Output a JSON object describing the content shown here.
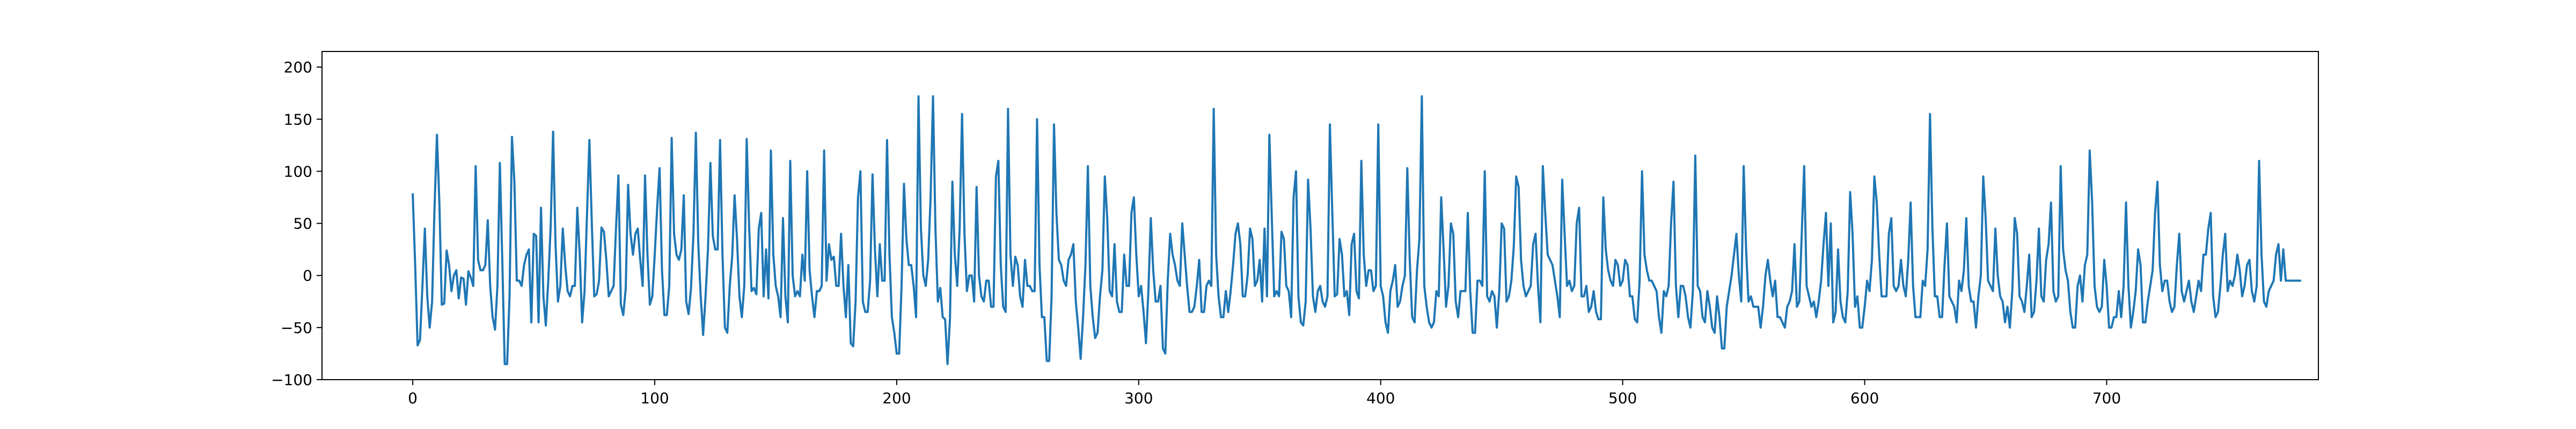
{
  "chart_data": {
    "type": "line",
    "title": "",
    "xlabel": "",
    "ylabel": "",
    "xlim": [
      -37.5,
      787.5
    ],
    "ylim": [
      -100,
      215
    ],
    "x_ticks": [
      0,
      100,
      200,
      300,
      400,
      500,
      600,
      700
    ],
    "y_ticks": [
      -100,
      -50,
      0,
      50,
      100,
      150,
      200
    ],
    "grid": false,
    "legend": "none",
    "line_color": "#1f77b4",
    "x_start": 0,
    "series": [
      {
        "values": [
          78,
          10,
          -67,
          -62,
          -10,
          45,
          -20,
          -50,
          -25,
          65,
          135,
          70,
          -28,
          -27,
          24,
          10,
          -15,
          0,
          5,
          -22,
          -2,
          -3,
          -28,
          4,
          -2,
          -10,
          105,
          15,
          5,
          5,
          10,
          53,
          -10,
          -40,
          -52,
          -10,
          108,
          15,
          -85,
          -85,
          -20,
          133,
          90,
          -5,
          -5,
          -10,
          10,
          20,
          25,
          -45,
          40,
          38,
          -45,
          65,
          -20,
          -48,
          -5,
          47,
          138,
          30,
          -25,
          -10,
          45,
          10,
          -15,
          -20,
          -10,
          -10,
          65,
          20,
          -45,
          -15,
          58,
          130,
          50,
          -20,
          -18,
          -5,
          46,
          42,
          15,
          -20,
          -15,
          -10,
          45,
          96,
          -28,
          -38,
          -13,
          87,
          40,
          20,
          40,
          45,
          15,
          -10,
          96,
          20,
          -28,
          -20,
          20,
          65,
          103,
          5,
          -38,
          -38,
          -10,
          132,
          40,
          20,
          15,
          25,
          77,
          -25,
          -37,
          -12,
          40,
          137,
          30,
          -20,
          -57,
          -20,
          25,
          108,
          38,
          25,
          25,
          130,
          20,
          -50,
          -55,
          -10,
          18,
          77,
          35,
          -20,
          -40,
          -10,
          131,
          48,
          -15,
          -12,
          -18,
          45,
          60,
          -20,
          25,
          -22,
          120,
          20,
          -10,
          -20,
          -40,
          55,
          -20,
          -45,
          110,
          0,
          -20,
          -15,
          -20,
          20,
          -5,
          100,
          5,
          -20,
          -40,
          -15,
          -15,
          -10,
          120,
          -5,
          30,
          15,
          18,
          -10,
          -10,
          40,
          -10,
          -40,
          10,
          -65,
          -68,
          -25,
          75,
          100,
          -25,
          -35,
          -35,
          -5,
          97,
          25,
          -20,
          30,
          -5,
          -5,
          130,
          20,
          -40,
          -55,
          -75,
          -75,
          -10,
          88,
          35,
          10,
          10,
          -10,
          -40,
          172,
          45,
          0,
          -10,
          15,
          75,
          172,
          45,
          -25,
          -12,
          -40,
          -42,
          -85,
          -42,
          90,
          20,
          -10,
          45,
          155,
          40,
          -15,
          0,
          0,
          -25,
          85,
          0,
          -20,
          -25,
          -5,
          -5,
          -30,
          -30,
          95,
          110,
          10,
          -30,
          -35,
          160,
          20,
          -10,
          18,
          10,
          -20,
          -30,
          15,
          -10,
          -10,
          -15,
          -15,
          150,
          10,
          -40,
          -40,
          -82,
          -82,
          -20,
          145,
          60,
          15,
          10,
          -5,
          -10,
          15,
          20,
          30,
          -25,
          -50,
          -80,
          -40,
          10,
          105,
          -10,
          -40,
          -60,
          -55,
          -20,
          5,
          95,
          55,
          -15,
          -20,
          30,
          -25,
          -35,
          -35,
          20,
          -10,
          -10,
          60,
          75,
          20,
          -20,
          -10,
          -35,
          -65,
          -15,
          55,
          5,
          -25,
          -25,
          -10,
          -70,
          -75,
          -5,
          40,
          20,
          10,
          -5,
          -10,
          50,
          20,
          -10,
          -35,
          -35,
          -30,
          -10,
          15,
          -35,
          -35,
          -10,
          -5,
          -10,
          160,
          20,
          -20,
          -40,
          -40,
          -15,
          -35,
          -15,
          10,
          40,
          50,
          30,
          -20,
          -20,
          0,
          45,
          35,
          -10,
          -5,
          15,
          -25,
          45,
          -20,
          135,
          55,
          -20,
          -15,
          -20,
          42,
          35,
          -10,
          -15,
          -40,
          75,
          100,
          -20,
          -45,
          -48,
          -25,
          92,
          45,
          -20,
          -35,
          -15,
          -10,
          -25,
          -30,
          -20,
          145,
          60,
          -20,
          -18,
          35,
          20,
          -20,
          -15,
          -38,
          30,
          40,
          -15,
          -22,
          110,
          20,
          -10,
          5,
          5,
          -15,
          -10,
          145,
          -10,
          -20,
          -45,
          -55,
          -15,
          -5,
          10,
          -30,
          -25,
          -10,
          0,
          103,
          15,
          -40,
          -45,
          5,
          35,
          172,
          -10,
          -30,
          -45,
          -50,
          -45,
          -15,
          -20,
          75,
          25,
          -30,
          -10,
          50,
          40,
          -25,
          -40,
          -15,
          -15,
          -15,
          60,
          -15,
          -55,
          -55,
          -5,
          -5,
          -10,
          100,
          -20,
          -25,
          -15,
          -20,
          -50,
          -15,
          50,
          45,
          -25,
          -20,
          -5,
          28,
          95,
          85,
          15,
          -10,
          -20,
          -15,
          -10,
          30,
          40,
          -10,
          -45,
          105,
          60,
          20,
          15,
          10,
          -5,
          -20,
          -40,
          92,
          40,
          -10,
          -5,
          -15,
          -10,
          50,
          65,
          -20,
          -20,
          -10,
          -35,
          -30,
          -15,
          -35,
          -42,
          -42,
          75,
          25,
          5,
          -5,
          -10,
          15,
          10,
          -10,
          -5,
          15,
          10,
          -20,
          -20,
          -42,
          -45,
          -5,
          100,
          20,
          5,
          -5,
          -5,
          -10,
          -15,
          -40,
          -55,
          -15,
          -20,
          -10,
          50,
          90,
          -10,
          -40,
          -10,
          -10,
          -20,
          -40,
          -50,
          -15,
          115,
          -10,
          -15,
          -40,
          -45,
          -15,
          -30,
          -50,
          -55,
          -20,
          -40,
          -70,
          -70,
          -30,
          -15,
          0,
          20,
          40,
          0,
          -25,
          105,
          25,
          -25,
          -20,
          -30,
          -30,
          -30,
          -50,
          -30,
          0,
          15,
          -5,
          -20,
          -5,
          -40,
          -40,
          -45,
          -50,
          -30,
          -25,
          -15,
          30,
          -30,
          -25,
          40,
          105,
          -10,
          -20,
          -30,
          -25,
          -40,
          -25,
          -5,
          30,
          60,
          -10,
          50,
          -45,
          -35,
          25,
          -25,
          -40,
          -45,
          -15,
          80,
          40,
          -30,
          -20,
          -50,
          -50,
          -30,
          -5,
          -15,
          15,
          95,
          70,
          20,
          -20,
          -20,
          -20,
          40,
          55,
          -10,
          -15,
          -10,
          15,
          -10,
          -20,
          15,
          70,
          -10,
          -40,
          -40,
          -40,
          -5,
          -10,
          25,
          155,
          45,
          -20,
          -20,
          -40,
          -40,
          10,
          50,
          -20,
          -25,
          -30,
          -45,
          -5,
          -15,
          5,
          55,
          -10,
          -25,
          -25,
          -50,
          -20,
          0,
          95,
          55,
          -5,
          -10,
          -15,
          45,
          0,
          -20,
          -25,
          -45,
          -30,
          -50,
          -15,
          55,
          40,
          -20,
          -25,
          -35,
          -10,
          20,
          -40,
          -35,
          -5,
          45,
          -20,
          -25,
          15,
          30,
          70,
          -15,
          -25,
          -20,
          105,
          25,
          5,
          -5,
          -35,
          -50,
          -50,
          -10,
          0,
          -25,
          10,
          20,
          120,
          70,
          -10,
          -30,
          -35,
          -30,
          15,
          -10,
          -50,
          -50,
          -40,
          -40,
          -15,
          -40,
          -10,
          70,
          -10,
          -50,
          -35,
          -15,
          25,
          10,
          -45,
          -45,
          -25,
          -10,
          5,
          60,
          90,
          10,
          -15,
          -5,
          -5,
          -25,
          -35,
          -30,
          10,
          40,
          -15,
          -25,
          -15,
          -5,
          -25,
          -35,
          -20,
          -5,
          -15,
          20,
          20,
          45,
          60,
          -20,
          -40,
          -35,
          -10,
          20,
          40,
          -15,
          -5,
          -10,
          0,
          20,
          5,
          -20,
          -10,
          10,
          15,
          -15,
          -25,
          -10,
          110,
          20,
          -25,
          -30,
          -15,
          -10,
          -5,
          20,
          30,
          -5,
          25,
          -5,
          -5,
          -5,
          -5,
          -5,
          -5,
          -5
        ]
      }
    ]
  }
}
